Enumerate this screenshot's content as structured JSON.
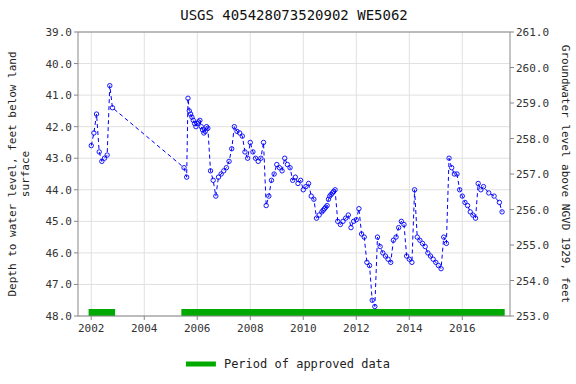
{
  "chart_data": {
    "type": "line",
    "title": "USGS 405428073520902 WE5062",
    "y_label": "Depth to water level, feet below land\nsurface",
    "y2_label": "Groundwater level above NGVD 1929, feet",
    "xlim": [
      2001.5,
      2017.8
    ],
    "ylim": [
      48.0,
      39.0
    ],
    "y2lim": [
      253.0,
      261.0
    ],
    "xticks": [
      2002,
      2004,
      2006,
      2008,
      2010,
      2012,
      2014,
      2016
    ],
    "yticks": [
      {
        "value": 39.0,
        "label": "39.0"
      },
      {
        "value": 40.0,
        "label": "40.0"
      },
      {
        "value": 41.0,
        "label": "41.0"
      },
      {
        "value": 42.0,
        "label": "42.0"
      },
      {
        "value": 43.0,
        "label": "43.0"
      },
      {
        "value": 44.0,
        "label": "44.0"
      },
      {
        "value": 45.0,
        "label": "45.0"
      },
      {
        "value": 46.0,
        "label": "46.0"
      },
      {
        "value": 47.0,
        "label": "47.0"
      },
      {
        "value": 48.0,
        "label": "48.0"
      }
    ],
    "y2ticks": [
      {
        "value": 253.0,
        "label": "253.0"
      },
      {
        "value": 254.0,
        "label": "254.0"
      },
      {
        "value": 255.0,
        "label": "255.0"
      },
      {
        "value": 256.0,
        "label": "256.0"
      },
      {
        "value": 257.0,
        "label": "257.0"
      },
      {
        "value": 258.0,
        "label": "258.0"
      },
      {
        "value": 259.0,
        "label": "259.0"
      },
      {
        "value": 260.0,
        "label": "260.0"
      },
      {
        "value": 261.0,
        "label": "261.0"
      }
    ],
    "grid": true,
    "legend": "bottom",
    "x": [
      2002.0,
      2002.1,
      2002.2,
      2002.3,
      2002.4,
      2002.5,
      2002.6,
      2002.7,
      2002.8,
      2005.5,
      2005.6,
      2005.65,
      2005.7,
      2005.75,
      2005.8,
      2005.85,
      2005.9,
      2005.95,
      2006.0,
      2006.05,
      2006.1,
      2006.15,
      2006.2,
      2006.25,
      2006.3,
      2006.35,
      2006.4,
      2006.5,
      2006.6,
      2006.7,
      2006.8,
      2006.9,
      2007.0,
      2007.1,
      2007.2,
      2007.3,
      2007.4,
      2007.5,
      2007.6,
      2007.7,
      2007.8,
      2007.9,
      2008.0,
      2008.1,
      2008.2,
      2008.3,
      2008.4,
      2008.5,
      2008.6,
      2008.7,
      2008.8,
      2008.9,
      2009.0,
      2009.1,
      2009.2,
      2009.3,
      2009.4,
      2009.5,
      2009.6,
      2009.7,
      2009.8,
      2009.9,
      2010.0,
      2010.1,
      2010.2,
      2010.3,
      2010.4,
      2010.5,
      2010.6,
      2010.7,
      2010.75,
      2010.8,
      2010.85,
      2010.9,
      2010.95,
      2011.0,
      2011.05,
      2011.1,
      2011.15,
      2011.2,
      2011.3,
      2011.4,
      2011.5,
      2011.6,
      2011.7,
      2011.8,
      2011.9,
      2012.0,
      2012.1,
      2012.2,
      2012.3,
      2012.4,
      2012.5,
      2012.6,
      2012.7,
      2012.8,
      2012.9,
      2013.0,
      2013.1,
      2013.2,
      2013.3,
      2013.4,
      2013.5,
      2013.6,
      2013.7,
      2013.8,
      2013.9,
      2014.0,
      2014.1,
      2014.2,
      2014.3,
      2014.4,
      2014.5,
      2014.6,
      2014.7,
      2014.8,
      2014.9,
      2015.0,
      2015.1,
      2015.2,
      2015.3,
      2015.4,
      2015.5,
      2015.6,
      2015.7,
      2015.8,
      2015.9,
      2016.0,
      2016.1,
      2016.2,
      2016.3,
      2016.4,
      2016.5,
      2016.6,
      2016.7,
      2016.8,
      2017.0,
      2017.2,
      2017.4,
      2017.5
    ],
    "series": [
      {
        "color": "#0000ff",
        "marker": "circle",
        "line_style": "dashed",
        "values": [
          42.6,
          42.2,
          41.6,
          42.8,
          43.1,
          43.0,
          42.9,
          40.7,
          41.4,
          43.3,
          43.6,
          41.1,
          41.5,
          41.6,
          41.7,
          41.8,
          41.9,
          42.0,
          41.9,
          41.85,
          41.8,
          42.0,
          42.1,
          42.2,
          42.15,
          42.0,
          42.05,
          43.4,
          43.7,
          44.2,
          43.6,
          43.5,
          43.4,
          43.3,
          43.1,
          42.7,
          42.0,
          42.15,
          42.2,
          42.3,
          42.8,
          43.0,
          42.5,
          42.8,
          43.0,
          43.1,
          43.0,
          42.5,
          44.5,
          44.2,
          43.7,
          43.5,
          43.2,
          43.3,
          43.4,
          43.0,
          43.2,
          43.3,
          43.7,
          43.6,
          43.8,
          43.7,
          44.0,
          43.9,
          43.8,
          44.2,
          44.3,
          44.9,
          44.8,
          44.7,
          44.65,
          44.6,
          44.55,
          44.5,
          44.3,
          44.2,
          44.15,
          44.1,
          44.05,
          44.0,
          45.0,
          45.1,
          45.0,
          44.9,
          44.8,
          45.2,
          45.0,
          44.95,
          44.6,
          45.4,
          45.5,
          46.3,
          46.4,
          47.5,
          47.7,
          45.5,
          45.8,
          46.0,
          46.1,
          46.2,
          46.3,
          45.6,
          45.5,
          45.2,
          45.0,
          45.1,
          46.1,
          46.2,
          46.3,
          44.0,
          45.5,
          45.6,
          45.7,
          45.8,
          46.0,
          46.1,
          46.2,
          46.3,
          46.4,
          46.5,
          45.5,
          45.7,
          43.0,
          43.3,
          43.5,
          43.5,
          44.0,
          44.2,
          44.4,
          44.5,
          44.7,
          44.8,
          44.9,
          43.8,
          44.0,
          43.9,
          44.1,
          44.2,
          44.4,
          44.7
        ]
      }
    ],
    "approved_periods": {
      "name": "Period of approved data",
      "color": "#00aa00",
      "ranges": [
        [
          2001.9,
          2002.9
        ],
        [
          2005.4,
          2017.6
        ]
      ]
    }
  }
}
